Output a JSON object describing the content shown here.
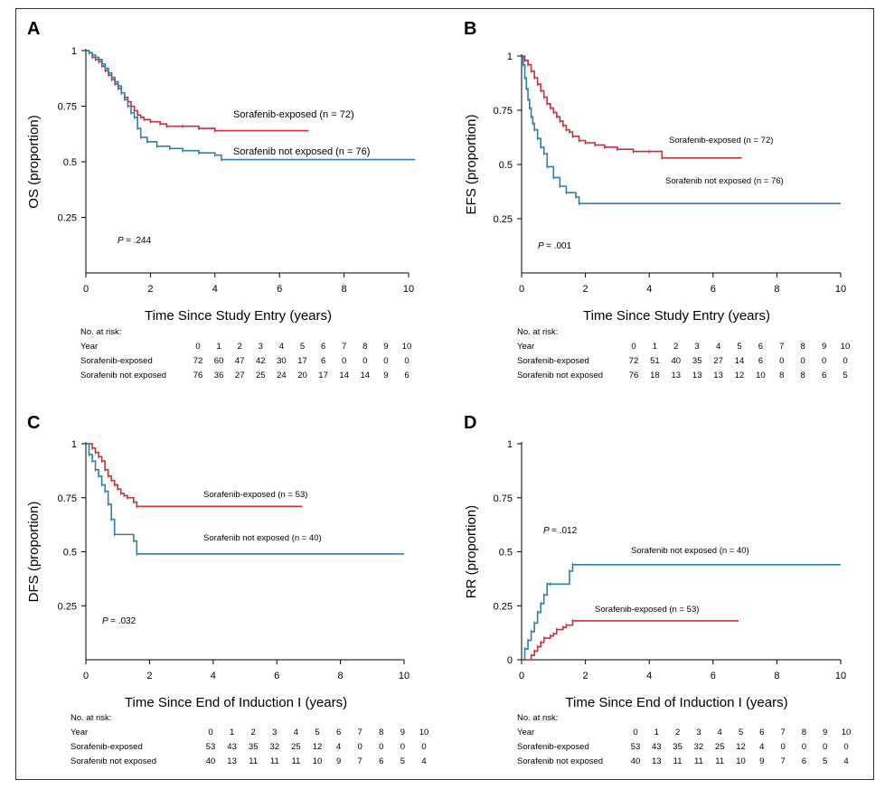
{
  "chart_data": [
    {
      "panel": "A",
      "type": "line",
      "step": true,
      "xlabel": "Time Since Study Entry (years)",
      "ylabel": "OS (proportion)",
      "xlim": [
        0,
        10
      ],
      "ylim": [
        0,
        1
      ],
      "xticks": [
        0,
        2,
        4,
        6,
        8,
        10
      ],
      "yticks": [
        0.25,
        0.5,
        0.75,
        1
      ],
      "ytick_labels": [
        "0.25",
        "0.5",
        "0.75",
        "1"
      ],
      "p_value": "= .244",
      "series": [
        {
          "name": "Sorafenib-exposed (n = 72)",
          "color": "#c0333d",
          "x": [
            0,
            0.1,
            0.2,
            0.3,
            0.4,
            0.5,
            0.6,
            0.7,
            0.8,
            0.9,
            1.0,
            1.1,
            1.2,
            1.3,
            1.4,
            1.5,
            1.6,
            1.7,
            1.8,
            2.0,
            2.3,
            2.5,
            3.0,
            3.5,
            4.0,
            6.9
          ],
          "y": [
            1,
            0.99,
            0.97,
            0.96,
            0.95,
            0.93,
            0.91,
            0.89,
            0.87,
            0.85,
            0.83,
            0.81,
            0.79,
            0.77,
            0.75,
            0.73,
            0.71,
            0.7,
            0.69,
            0.68,
            0.67,
            0.66,
            0.66,
            0.65,
            0.64,
            0.64
          ]
        },
        {
          "name": "Sorafenib not exposed (n = 76)",
          "color": "#2f7ea8",
          "x": [
            0,
            0.1,
            0.2,
            0.3,
            0.4,
            0.5,
            0.6,
            0.7,
            0.8,
            0.9,
            1.0,
            1.1,
            1.2,
            1.3,
            1.4,
            1.5,
            1.6,
            1.7,
            1.9,
            2.2,
            2.6,
            3.0,
            3.5,
            4.0,
            4.2,
            10.2
          ],
          "y": [
            1,
            0.99,
            0.98,
            0.97,
            0.96,
            0.94,
            0.92,
            0.9,
            0.88,
            0.86,
            0.84,
            0.81,
            0.78,
            0.75,
            0.72,
            0.7,
            0.65,
            0.61,
            0.59,
            0.57,
            0.56,
            0.55,
            0.54,
            0.53,
            0.51,
            0.51
          ]
        }
      ],
      "risk_table": {
        "title": "No. at risk:",
        "year_label": "Year",
        "years": [
          0,
          1,
          2,
          3,
          4,
          5,
          6,
          7,
          8,
          9,
          10
        ],
        "rows": [
          {
            "label": "Sorafenib-exposed",
            "values": [
              72,
              60,
              47,
              42,
              30,
              17,
              6,
              0,
              0,
              0,
              0
            ]
          },
          {
            "label": "Sorafenib not exposed",
            "values": [
              76,
              36,
              27,
              25,
              24,
              20,
              17,
              14,
              14,
              9,
              6
            ]
          }
        ]
      }
    },
    {
      "panel": "B",
      "type": "line",
      "step": true,
      "xlabel": "Time Since Study Entry (years)",
      "ylabel": "EFS (proportion)",
      "xlim": [
        0,
        10
      ],
      "ylim": [
        0,
        1
      ],
      "xticks": [
        0,
        2,
        4,
        6,
        8,
        10
      ],
      "yticks": [
        0.25,
        0.5,
        0.75,
        1
      ],
      "ytick_labels": [
        "0.25",
        "0.5",
        "0.75",
        "1"
      ],
      "p_value": "= .001",
      "series": [
        {
          "name": "Sorafenib-exposed (n = 72)",
          "color": "#c0333d",
          "x": [
            0,
            0.1,
            0.2,
            0.3,
            0.4,
            0.5,
            0.6,
            0.7,
            0.8,
            0.9,
            1.0,
            1.1,
            1.2,
            1.3,
            1.4,
            1.5,
            1.6,
            1.8,
            2.0,
            2.3,
            2.6,
            3.0,
            3.5,
            4.0,
            4.4,
            6.9
          ],
          "y": [
            1,
            0.98,
            0.96,
            0.93,
            0.9,
            0.87,
            0.84,
            0.81,
            0.78,
            0.76,
            0.74,
            0.72,
            0.7,
            0.68,
            0.66,
            0.65,
            0.63,
            0.61,
            0.6,
            0.59,
            0.58,
            0.57,
            0.56,
            0.56,
            0.53,
            0.53
          ]
        },
        {
          "name": "Sorafenib not exposed (n = 76)",
          "color": "#2f7ea8",
          "x": [
            0,
            0.05,
            0.1,
            0.15,
            0.2,
            0.25,
            0.3,
            0.35,
            0.4,
            0.5,
            0.6,
            0.7,
            0.8,
            1.0,
            1.2,
            1.4,
            1.7,
            1.8,
            10
          ],
          "y": [
            1,
            0.96,
            0.9,
            0.85,
            0.8,
            0.76,
            0.72,
            0.69,
            0.66,
            0.62,
            0.58,
            0.55,
            0.49,
            0.44,
            0.4,
            0.37,
            0.35,
            0.32,
            0.32
          ]
        }
      ],
      "risk_table": {
        "title": "No. at risk:",
        "year_label": "Year",
        "years": [
          0,
          1,
          2,
          3,
          4,
          5,
          6,
          7,
          8,
          9,
          10
        ],
        "rows": [
          {
            "label": "Sorafenib-exposed",
            "values": [
              72,
              51,
              40,
              35,
              27,
              14,
              6,
              0,
              0,
              0,
              0
            ]
          },
          {
            "label": "Sorafenib not exposed",
            "values": [
              76,
              18,
              13,
              13,
              13,
              12,
              10,
              8,
              8,
              6,
              5
            ]
          }
        ]
      }
    },
    {
      "panel": "C",
      "type": "line",
      "step": true,
      "xlabel": "Time Since End of Induction I (years)",
      "ylabel": "DFS (proportion)",
      "xlim": [
        0,
        10
      ],
      "ylim": [
        0,
        1
      ],
      "xticks": [
        0,
        2,
        4,
        6,
        8,
        10
      ],
      "yticks": [
        0.25,
        0.5,
        0.75,
        1
      ],
      "ytick_labels": [
        "0.25",
        "0.5",
        "0.75",
        "1"
      ],
      "p_value": "= .032",
      "series": [
        {
          "name": "Sorafenib-exposed (n = 53)",
          "color": "#c0333d",
          "x": [
            0,
            0.2,
            0.3,
            0.4,
            0.5,
            0.6,
            0.7,
            0.8,
            0.9,
            1.0,
            1.1,
            1.2,
            1.3,
            1.5,
            1.6,
            6.8
          ],
          "y": [
            1,
            0.98,
            0.96,
            0.94,
            0.92,
            0.88,
            0.85,
            0.83,
            0.81,
            0.79,
            0.77,
            0.76,
            0.75,
            0.73,
            0.71,
            0.71
          ]
        },
        {
          "name": "Sorafenib not exposed (n = 40)",
          "color": "#2f7ea8",
          "x": [
            0,
            0.1,
            0.2,
            0.3,
            0.4,
            0.5,
            0.6,
            0.7,
            0.8,
            0.9,
            1.5,
            1.6,
            10
          ],
          "y": [
            1,
            0.95,
            0.92,
            0.88,
            0.85,
            0.81,
            0.78,
            0.72,
            0.65,
            0.58,
            0.55,
            0.49,
            0.49
          ]
        }
      ],
      "risk_table": {
        "title": "No. at risk:",
        "year_label": "Year",
        "years": [
          0,
          1,
          2,
          3,
          4,
          5,
          6,
          7,
          8,
          9,
          10
        ],
        "rows": [
          {
            "label": "Sorafenib-exposed",
            "values": [
              53,
              43,
              35,
              32,
              25,
              12,
              4,
              0,
              0,
              0,
              0
            ]
          },
          {
            "label": "Sorafenib not exposed",
            "values": [
              40,
              13,
              11,
              11,
              11,
              10,
              9,
              7,
              6,
              5,
              4
            ]
          }
        ]
      }
    },
    {
      "panel": "D",
      "type": "line",
      "step": true,
      "xlabel": "Time Since End of Induction I (years)",
      "ylabel": "RR (proportion)",
      "xlim": [
        0,
        10
      ],
      "ylim": [
        0,
        1
      ],
      "xticks": [
        0,
        2,
        4,
        6,
        8,
        10
      ],
      "yticks": [
        0,
        0.25,
        0.5,
        0.75,
        1
      ],
      "ytick_labels": [
        "0",
        "0.25",
        "0.5",
        "0.75",
        "1"
      ],
      "p_value": "= .012",
      "series": [
        {
          "name": "Sorafenib not exposed (n = 40)",
          "color": "#2f7ea8",
          "x": [
            0,
            0.1,
            0.2,
            0.3,
            0.4,
            0.5,
            0.6,
            0.7,
            0.8,
            0.9,
            1.5,
            1.6,
            10
          ],
          "y": [
            0,
            0.05,
            0.09,
            0.13,
            0.17,
            0.22,
            0.26,
            0.3,
            0.35,
            0.35,
            0.41,
            0.44,
            0.44
          ]
        },
        {
          "name": "Sorafenib-exposed (n = 53)",
          "color": "#c0333d",
          "x": [
            0,
            0.3,
            0.4,
            0.5,
            0.6,
            0.7,
            0.9,
            1.0,
            1.1,
            1.3,
            1.4,
            1.6,
            6.8
          ],
          "y": [
            0,
            0.02,
            0.04,
            0.06,
            0.08,
            0.1,
            0.11,
            0.12,
            0.14,
            0.15,
            0.16,
            0.18,
            0.18
          ]
        }
      ],
      "risk_table": {
        "title": "No. at risk:",
        "year_label": "Year",
        "years": [
          0,
          1,
          2,
          3,
          4,
          5,
          6,
          7,
          8,
          9,
          10
        ],
        "rows": [
          {
            "label": "Sorafenib-exposed",
            "values": [
              53,
              43,
              35,
              32,
              25,
              12,
              4,
              0,
              0,
              0,
              0
            ]
          },
          {
            "label": "Sorafenib not exposed",
            "values": [
              40,
              13,
              11,
              11,
              11,
              10,
              9,
              7,
              6,
              5,
              4
            ]
          }
        ]
      }
    }
  ]
}
